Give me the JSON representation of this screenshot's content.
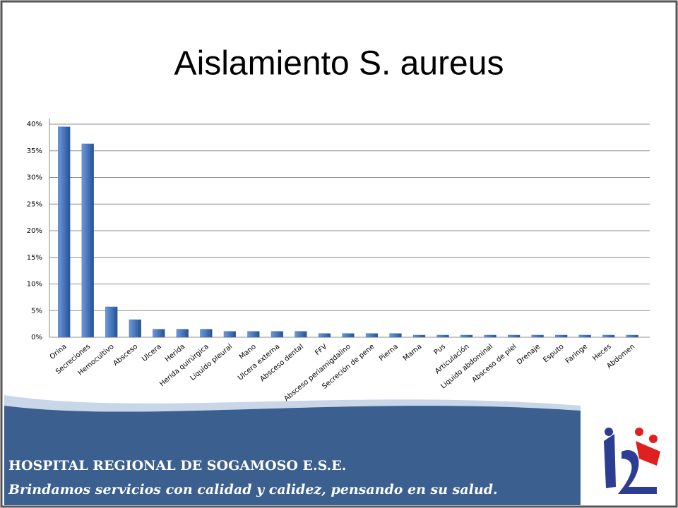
{
  "chart_data": {
    "type": "bar",
    "title": "Aislamiento S. aureus",
    "categories": [
      "Orina",
      "Secreciones",
      "Hemocultivo",
      "Absceso",
      "Ulcera",
      "Herida",
      "Herida quirúrgica",
      "Liquido pleural",
      "Mano",
      "Ulcera externa",
      "Absceso dental",
      "FFV",
      "Absceso periamigdalino",
      "Secreción de pene",
      "Pierna",
      "Mama",
      "Pus",
      "Articulación",
      "Liquido abdominal",
      "Absceso de piel",
      "Drenaje",
      "Esputo",
      "Faringe",
      "Heces",
      "Abdomen"
    ],
    "values": [
      39.5,
      36.3,
      5.7,
      3.3,
      1.5,
      1.5,
      1.5,
      1.1,
      1.1,
      1.1,
      1.1,
      0.7,
      0.7,
      0.7,
      0.7,
      0.4,
      0.4,
      0.4,
      0.4,
      0.4,
      0.4,
      0.4,
      0.4,
      0.4,
      0.4
    ],
    "color": "#3f6fb5",
    "ylim": [
      0,
      40
    ],
    "yticks": [
      {
        "value": 0,
        "label": "0%"
      },
      {
        "value": 5,
        "label": "5%"
      },
      {
        "value": 10,
        "label": "10%"
      },
      {
        "value": 15,
        "label": "15%"
      },
      {
        "value": 20,
        "label": "20%"
      },
      {
        "value": 25,
        "label": "25%"
      },
      {
        "value": 30,
        "label": "30%"
      },
      {
        "value": 35,
        "label": "35%"
      },
      {
        "value": 40,
        "label": "40%"
      }
    ],
    "grid": true
  },
  "footer": {
    "hospital": "HOSPITAL REGIONAL DE SOGAMOSO E.S.E.",
    "slogan": "Brindamos servicios con calidad y calidez, pensando en su salud."
  }
}
